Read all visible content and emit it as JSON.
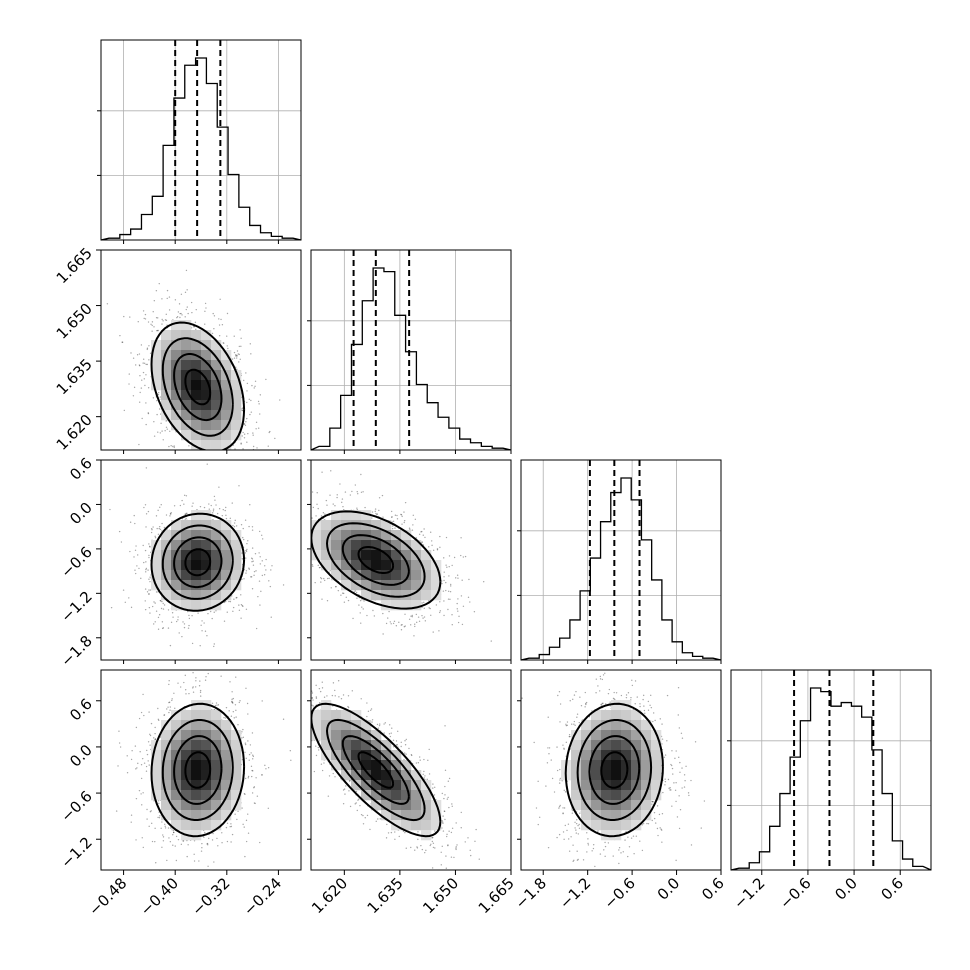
{
  "chart_data": {
    "type": "corner",
    "parameters": [
      {
        "ticks": [
          -0.48,
          -0.4,
          -0.32,
          -0.24
        ],
        "tick_labels": [
          "−0.48",
          "−0.40",
          "−0.32",
          "−0.24"
        ],
        "range": [
          -0.515,
          -0.205
        ],
        "quantiles": [
          -0.4,
          -0.366,
          -0.33
        ]
      },
      {
        "ticks": [
          1.62,
          1.635,
          1.65,
          1.665
        ],
        "tick_labels": [
          "1.620",
          "1.635",
          "1.650",
          "1.665"
        ],
        "range": [
          1.611,
          1.665
        ],
        "quantiles": [
          1.6225,
          1.6285,
          1.6375
        ]
      },
      {
        "ticks": [
          -1.8,
          -1.2,
          -0.6,
          0.0,
          0.6
        ],
        "tick_labels": [
          "−1.8",
          "−1.2",
          "−0.6",
          "0.0",
          "0.6"
        ],
        "range": [
          -2.1,
          0.6
        ],
        "quantiles": [
          -1.17,
          -0.84,
          -0.5
        ]
      },
      {
        "ticks": [
          -1.2,
          -0.6,
          0.0,
          0.6
        ],
        "tick_labels": [
          "−1.2",
          "−0.6",
          "0.0",
          "0.6"
        ],
        "range": [
          -1.6,
          1.0
        ],
        "quantiles": [
          -0.78,
          -0.32,
          0.25
        ]
      }
    ],
    "histograms": [
      [
        1,
        3,
        6,
        14,
        24,
        52,
        78,
        96,
        100,
        86,
        62,
        36,
        18,
        8,
        4,
        2,
        1
      ],
      [
        2,
        12,
        30,
        58,
        82,
        100,
        98,
        74,
        54,
        36,
        26,
        18,
        12,
        6,
        4,
        2,
        1
      ],
      [
        1,
        3,
        7,
        12,
        22,
        38,
        56,
        76,
        92,
        100,
        88,
        66,
        44,
        22,
        10,
        4,
        2,
        1
      ],
      [
        1,
        4,
        10,
        24,
        42,
        62,
        82,
        100,
        98,
        90,
        92,
        90,
        84,
        66,
        42,
        16,
        6,
        2
      ]
    ],
    "pairs": [
      {
        "row": 1,
        "col": 0,
        "center": [
          -0.365,
          1.628
        ],
        "scale": [
          0.035,
          0.0085
        ],
        "rho": -0.35
      },
      {
        "row": 2,
        "col": 0,
        "center": [
          -0.365,
          -0.78
        ],
        "scale": [
          0.035,
          0.32
        ],
        "rho": 0.05
      },
      {
        "row": 2,
        "col": 1,
        "center": [
          1.6285,
          -0.75
        ],
        "scale": [
          0.0085,
          0.32
        ],
        "rho": -0.45
      },
      {
        "row": 3,
        "col": 0,
        "center": [
          -0.365,
          -0.3
        ],
        "scale": [
          0.035,
          0.42
        ],
        "rho": 0.05
      },
      {
        "row": 3,
        "col": 1,
        "center": [
          1.6285,
          -0.3
        ],
        "scale": [
          0.0085,
          0.42
        ],
        "rho": -0.78
      },
      {
        "row": 3,
        "col": 2,
        "center": [
          -0.84,
          -0.3
        ],
        "scale": [
          0.32,
          0.42
        ],
        "rho": 0.05
      }
    ]
  }
}
